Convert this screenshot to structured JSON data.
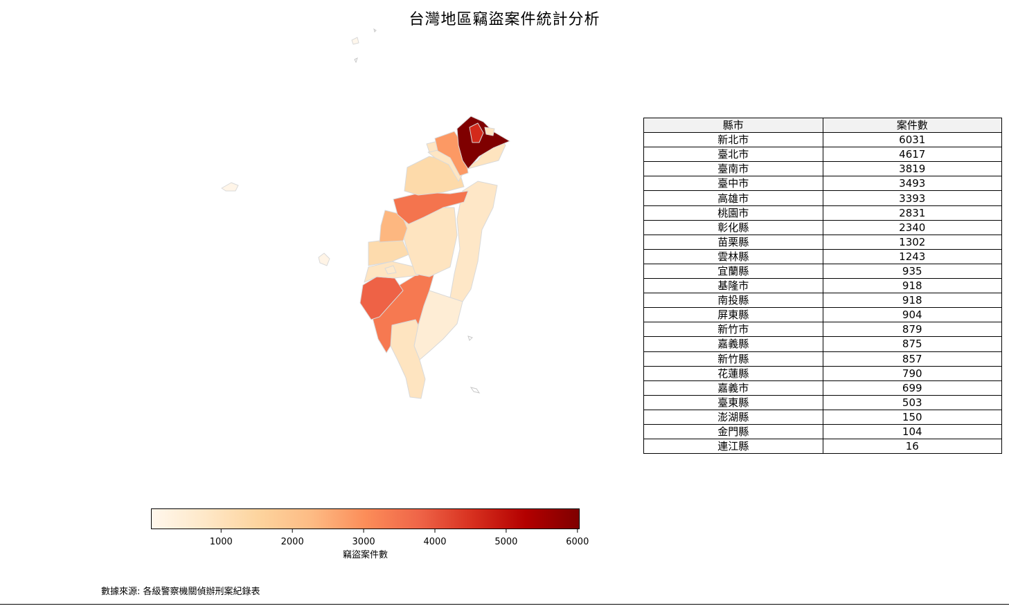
{
  "title": "台灣地區竊盜案件統計分析",
  "source_note": "數據來源: 各級警察機關偵辦刑案紀錄表",
  "colorbar": {
    "label": "竊盜案件數",
    "vmin": 16,
    "vmax": 6031,
    "ticks": [
      "1000",
      "2000",
      "3000",
      "4000",
      "5000",
      "6000"
    ],
    "tick_values": [
      1000,
      2000,
      3000,
      4000,
      5000,
      6000
    ],
    "colormap": [
      "#fff7ec",
      "#fee8c8",
      "#fdd49e",
      "#fdbb84",
      "#fc8d59",
      "#ef6548",
      "#d7301f",
      "#b30000",
      "#7f0000"
    ]
  },
  "table": {
    "headers": [
      "縣市",
      "案件數"
    ],
    "rows": [
      [
        "新北市",
        "6031"
      ],
      [
        "臺北市",
        "4617"
      ],
      [
        "臺南市",
        "3819"
      ],
      [
        "臺中市",
        "3493"
      ],
      [
        "高雄市",
        "3393"
      ],
      [
        "桃園市",
        "2831"
      ],
      [
        "彰化縣",
        "2340"
      ],
      [
        "苗栗縣",
        "1302"
      ],
      [
        "雲林縣",
        "1243"
      ],
      [
        "宜蘭縣",
        "935"
      ],
      [
        "基隆市",
        "918"
      ],
      [
        "南投縣",
        "918"
      ],
      [
        "屏東縣",
        "904"
      ],
      [
        "新竹市",
        "879"
      ],
      [
        "嘉義縣",
        "875"
      ],
      [
        "新竹縣",
        "857"
      ],
      [
        "花蓮縣",
        "790"
      ],
      [
        "嘉義市",
        "699"
      ],
      [
        "臺東縣",
        "503"
      ],
      [
        "澎湖縣",
        "150"
      ],
      [
        "金門縣",
        "104"
      ],
      [
        "連江縣",
        "16"
      ]
    ]
  },
  "chart_data": {
    "type": "table",
    "title": "台灣地區竊盜案件統計分析",
    "categories": [
      "新北市",
      "臺北市",
      "臺南市",
      "臺中市",
      "高雄市",
      "桃園市",
      "彰化縣",
      "苗栗縣",
      "雲林縣",
      "宜蘭縣",
      "基隆市",
      "南投縣",
      "屏東縣",
      "新竹市",
      "嘉義縣",
      "新竹縣",
      "花蓮縣",
      "嘉義市",
      "臺東縣",
      "澎湖縣",
      "金門縣",
      "連江縣"
    ],
    "values": [
      6031,
      4617,
      3819,
      3493,
      3393,
      2831,
      2340,
      1302,
      1243,
      935,
      918,
      918,
      904,
      879,
      875,
      857,
      790,
      699,
      503,
      150,
      104,
      16
    ],
    "colorbar_label": "竊盜案件數",
    "map": "choropleth"
  }
}
